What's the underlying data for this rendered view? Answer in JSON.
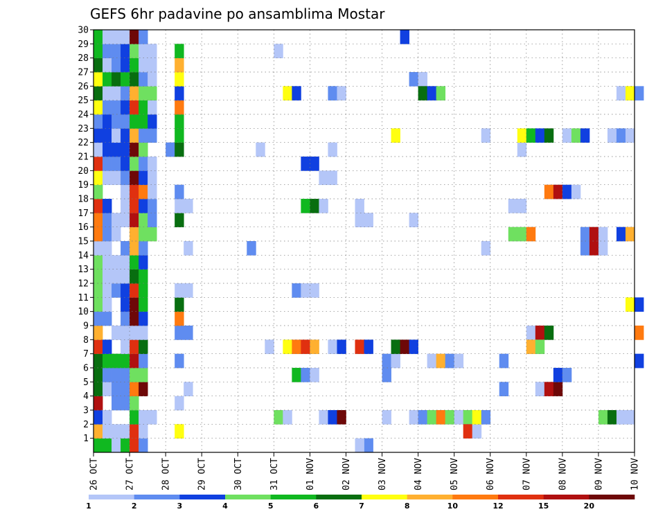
{
  "chart_data": {
    "type": "heatmap",
    "title": "GEFS 6hr padavine po ansamblima Mostar",
    "x_tick_labels": [
      "26 OCT",
      "27 OCT",
      "28 OCT",
      "29 OCT",
      "30 OCT",
      "31 OCT",
      "01 NOV",
      "02 NOV",
      "03 NOV",
      "04 NOV",
      "05 NOV",
      "06 NOV",
      "07 NOV",
      "08 NOV",
      "09 NOV",
      "10 NOV"
    ],
    "y_tick_labels": [
      "1",
      "2",
      "3",
      "4",
      "5",
      "6",
      "7",
      "8",
      "9",
      "10",
      "11",
      "12",
      "13",
      "14",
      "15",
      "16",
      "17",
      "18",
      "19",
      "20",
      "21",
      "22",
      "23",
      "24",
      "25",
      "26",
      "27",
      "28",
      "29",
      "30"
    ],
    "xlim_steps_6h": [
      0,
      60
    ],
    "ylim_members": [
      0,
      30
    ],
    "grid": true,
    "colorbar": {
      "labels": [
        "1",
        "2",
        "3",
        "4",
        "5",
        "6",
        "7",
        "8",
        "10",
        "12",
        "15",
        "20"
      ],
      "colors": [
        "#b4c6f8",
        "#5f8cf0",
        "#1040e0",
        "#6fe060",
        "#10b820",
        "#086e10",
        "#ffff10",
        "#ffb030",
        "#ff7a10",
        "#e03010",
        "#b01010",
        "#6e0808"
      ]
    },
    "cells": [
      [
        0,
        0,
        5
      ],
      [
        1,
        0,
        5
      ],
      [
        0,
        1,
        8
      ],
      [
        0,
        2,
        3
      ],
      [
        0,
        3,
        11
      ],
      [
        0,
        4,
        6
      ],
      [
        0,
        5,
        6
      ],
      [
        0,
        6,
        6
      ],
      [
        0,
        7,
        10
      ],
      [
        0,
        8,
        8
      ],
      [
        0,
        9,
        2
      ],
      [
        0,
        10,
        4
      ],
      [
        0,
        11,
        4
      ],
      [
        0,
        12,
        4
      ],
      [
        0,
        13,
        4
      ],
      [
        0,
        14,
        1
      ],
      [
        0,
        15,
        9
      ],
      [
        0,
        16,
        9
      ],
      [
        0,
        17,
        10
      ],
      [
        0,
        18,
        4
      ],
      [
        0,
        19,
        7
      ],
      [
        0,
        20,
        10
      ],
      [
        0,
        21,
        1
      ],
      [
        0,
        22,
        3
      ],
      [
        0,
        23,
        2
      ],
      [
        0,
        24,
        7
      ],
      [
        0,
        25,
        6
      ],
      [
        0,
        26,
        7
      ],
      [
        0,
        27,
        6
      ],
      [
        0,
        28,
        5
      ],
      [
        0,
        29,
        5
      ],
      [
        1,
        1,
        1
      ],
      [
        1,
        2,
        1
      ],
      [
        1,
        4,
        1
      ],
      [
        1,
        5,
        2
      ],
      [
        1,
        6,
        5
      ],
      [
        1,
        7,
        3
      ],
      [
        1,
        9,
        2
      ],
      [
        1,
        10,
        1
      ],
      [
        1,
        11,
        1
      ],
      [
        1,
        12,
        1
      ],
      [
        1,
        13,
        1
      ],
      [
        1,
        14,
        1
      ],
      [
        1,
        15,
        2
      ],
      [
        1,
        16,
        2
      ],
      [
        1,
        17,
        3
      ],
      [
        1,
        19,
        1
      ],
      [
        1,
        20,
        2
      ],
      [
        1,
        21,
        3
      ],
      [
        1,
        22,
        3
      ],
      [
        1,
        23,
        3
      ],
      [
        1,
        24,
        2
      ],
      [
        1,
        25,
        1
      ],
      [
        1,
        26,
        5
      ],
      [
        1,
        27,
        1
      ],
      [
        1,
        28,
        2
      ],
      [
        1,
        29,
        1
      ],
      [
        2,
        0,
        1
      ],
      [
        2,
        1,
        1
      ],
      [
        2,
        3,
        2
      ],
      [
        2,
        4,
        2
      ],
      [
        2,
        5,
        2
      ],
      [
        2,
        6,
        5
      ],
      [
        2,
        8,
        1
      ],
      [
        2,
        11,
        2
      ],
      [
        2,
        12,
        1
      ],
      [
        2,
        13,
        1
      ],
      [
        2,
        15,
        1
      ],
      [
        2,
        16,
        1
      ],
      [
        2,
        19,
        1
      ],
      [
        2,
        20,
        2
      ],
      [
        2,
        21,
        3
      ],
      [
        2,
        22,
        1
      ],
      [
        2,
        23,
        2
      ],
      [
        2,
        24,
        2
      ],
      [
        2,
        25,
        1
      ],
      [
        2,
        26,
        6
      ],
      [
        2,
        27,
        2
      ],
      [
        2,
        28,
        2
      ],
      [
        2,
        29,
        1
      ],
      [
        3,
        0,
        5
      ],
      [
        3,
        1,
        1
      ],
      [
        3,
        3,
        2
      ],
      [
        3,
        4,
        2
      ],
      [
        3,
        5,
        2
      ],
      [
        3,
        6,
        5
      ],
      [
        3,
        7,
        1
      ],
      [
        3,
        8,
        1
      ],
      [
        3,
        9,
        2
      ],
      [
        3,
        10,
        3
      ],
      [
        3,
        11,
        3
      ],
      [
        3,
        12,
        1
      ],
      [
        3,
        13,
        1
      ],
      [
        3,
        14,
        2
      ],
      [
        3,
        16,
        1
      ],
      [
        3,
        17,
        1
      ],
      [
        3,
        18,
        1
      ],
      [
        3,
        19,
        2
      ],
      [
        3,
        20,
        3
      ],
      [
        3,
        21,
        3
      ],
      [
        3,
        22,
        3
      ],
      [
        3,
        23,
        2
      ],
      [
        3,
        24,
        3
      ],
      [
        3,
        25,
        2
      ],
      [
        3,
        26,
        5
      ],
      [
        3,
        27,
        3
      ],
      [
        3,
        28,
        3
      ],
      [
        3,
        29,
        1
      ],
      [
        4,
        0,
        10
      ],
      [
        4,
        1,
        10
      ],
      [
        4,
        2,
        5
      ],
      [
        4,
        3,
        4
      ],
      [
        4,
        4,
        9
      ],
      [
        4,
        5,
        4
      ],
      [
        4,
        6,
        11
      ],
      [
        4,
        7,
        10
      ],
      [
        4,
        8,
        1
      ],
      [
        4,
        9,
        12
      ],
      [
        4,
        10,
        12
      ],
      [
        4,
        11,
        10
      ],
      [
        4,
        12,
        6
      ],
      [
        4,
        13,
        5
      ],
      [
        4,
        14,
        8
      ],
      [
        4,
        15,
        8
      ],
      [
        4,
        16,
        11
      ],
      [
        4,
        17,
        10
      ],
      [
        4,
        18,
        10
      ],
      [
        4,
        19,
        12
      ],
      [
        4,
        20,
        4
      ],
      [
        4,
        21,
        12
      ],
      [
        4,
        22,
        8
      ],
      [
        4,
        23,
        5
      ],
      [
        4,
        24,
        10
      ],
      [
        4,
        25,
        8
      ],
      [
        4,
        26,
        6
      ],
      [
        4,
        27,
        5
      ],
      [
        4,
        28,
        4
      ],
      [
        4,
        29,
        12
      ],
      [
        5,
        0,
        2
      ],
      [
        5,
        1,
        1
      ],
      [
        5,
        2,
        1
      ],
      [
        5,
        4,
        12
      ],
      [
        5,
        5,
        4
      ],
      [
        5,
        6,
        2
      ],
      [
        5,
        7,
        6
      ],
      [
        5,
        8,
        1
      ],
      [
        5,
        9,
        3
      ],
      [
        5,
        10,
        5
      ],
      [
        5,
        11,
        5
      ],
      [
        5,
        12,
        5
      ],
      [
        5,
        13,
        3
      ],
      [
        5,
        14,
        2
      ],
      [
        5,
        15,
        4
      ],
      [
        5,
        16,
        4
      ],
      [
        5,
        17,
        3
      ],
      [
        5,
        18,
        9
      ],
      [
        5,
        19,
        3
      ],
      [
        5,
        20,
        2
      ],
      [
        5,
        21,
        4
      ],
      [
        5,
        22,
        2
      ],
      [
        5,
        23,
        5
      ],
      [
        5,
        24,
        5
      ],
      [
        5,
        25,
        4
      ],
      [
        5,
        26,
        2
      ],
      [
        5,
        27,
        1
      ],
      [
        5,
        28,
        1
      ],
      [
        5,
        29,
        2
      ],
      [
        6,
        2,
        1
      ],
      [
        6,
        15,
        4
      ],
      [
        6,
        16,
        2
      ],
      [
        6,
        17,
        2
      ],
      [
        6,
        18,
        1
      ],
      [
        6,
        19,
        1
      ],
      [
        6,
        20,
        1
      ],
      [
        6,
        22,
        2
      ],
      [
        6,
        23,
        3
      ],
      [
        6,
        24,
        1
      ],
      [
        6,
        25,
        4
      ],
      [
        6,
        26,
        1
      ],
      [
        6,
        27,
        1
      ],
      [
        6,
        28,
        1
      ],
      [
        8,
        21,
        2
      ],
      [
        9,
        1,
        7
      ],
      [
        9,
        3,
        1
      ],
      [
        9,
        6,
        2
      ],
      [
        9,
        8,
        2
      ],
      [
        9,
        9,
        9
      ],
      [
        9,
        10,
        6
      ],
      [
        9,
        11,
        1
      ],
      [
        9,
        16,
        6
      ],
      [
        9,
        17,
        1
      ],
      [
        9,
        18,
        2
      ],
      [
        9,
        21,
        6
      ],
      [
        9,
        22,
        5
      ],
      [
        9,
        23,
        5
      ],
      [
        9,
        24,
        9
      ],
      [
        9,
        25,
        3
      ],
      [
        9,
        26,
        7
      ],
      [
        9,
        27,
        8
      ],
      [
        9,
        28,
        5
      ],
      [
        10,
        4,
        1
      ],
      [
        10,
        8,
        2
      ],
      [
        10,
        11,
        1
      ],
      [
        10,
        14,
        1
      ],
      [
        10,
        17,
        1
      ],
      [
        17,
        14,
        2
      ],
      [
        18,
        21,
        1
      ],
      [
        19,
        7,
        1
      ],
      [
        20,
        28,
        1
      ],
      [
        21,
        7,
        7
      ],
      [
        22,
        7,
        9
      ],
      [
        23,
        7,
        10
      ],
      [
        24,
        7,
        8
      ],
      [
        21,
        25,
        7
      ],
      [
        22,
        25,
        3
      ],
      [
        20,
        2,
        4
      ],
      [
        21,
        2,
        1
      ],
      [
        22,
        5,
        5
      ],
      [
        23,
        5,
        2
      ],
      [
        24,
        5,
        1
      ],
      [
        22,
        11,
        2
      ],
      [
        23,
        11,
        1
      ],
      [
        24,
        11,
        1
      ],
      [
        23,
        17,
        5
      ],
      [
        24,
        17,
        6
      ],
      [
        25,
        17,
        1
      ],
      [
        23,
        20,
        3
      ],
      [
        24,
        20,
        3
      ],
      [
        25,
        19,
        1
      ],
      [
        26,
        19,
        1
      ],
      [
        25,
        2,
        1
      ],
      [
        26,
        2,
        3
      ],
      [
        27,
        2,
        12
      ],
      [
        26,
        21,
        1
      ],
      [
        26,
        25,
        2
      ],
      [
        27,
        25,
        1
      ],
      [
        26,
        7,
        1
      ],
      [
        27,
        7,
        3
      ],
      [
        29,
        7,
        10
      ],
      [
        30,
        7,
        3
      ],
      [
        29,
        17,
        1
      ],
      [
        29,
        16,
        1
      ],
      [
        30,
        16,
        1
      ],
      [
        30,
        0,
        2
      ],
      [
        29,
        0,
        1
      ],
      [
        32,
        6,
        2
      ],
      [
        32,
        5,
        2
      ],
      [
        32,
        2,
        1
      ],
      [
        33,
        6,
        1
      ],
      [
        33,
        7,
        6
      ],
      [
        34,
        7,
        12
      ],
      [
        35,
        7,
        3
      ],
      [
        33,
        22,
        7
      ],
      [
        34,
        29,
        3
      ],
      [
        35,
        2,
        1
      ],
      [
        35,
        26,
        2
      ],
      [
        36,
        26,
        1
      ],
      [
        35,
        16,
        1
      ],
      [
        36,
        25,
        6
      ],
      [
        37,
        25,
        3
      ],
      [
        38,
        25,
        4
      ],
      [
        36,
        2,
        2
      ],
      [
        37,
        2,
        4
      ],
      [
        37,
        6,
        1
      ],
      [
        38,
        2,
        9
      ],
      [
        38,
        6,
        8
      ],
      [
        39,
        2,
        4
      ],
      [
        39,
        6,
        2
      ],
      [
        40,
        2,
        1
      ],
      [
        40,
        6,
        1
      ],
      [
        41,
        2,
        4
      ],
      [
        41,
        1,
        10
      ],
      [
        42,
        1,
        1
      ],
      [
        42,
        2,
        7
      ],
      [
        43,
        2,
        2
      ],
      [
        43,
        14,
        1
      ],
      [
        43,
        22,
        1
      ],
      [
        45,
        6,
        2
      ],
      [
        45,
        4,
        2
      ],
      [
        46,
        17,
        1
      ],
      [
        47,
        17,
        1
      ],
      [
        47,
        21,
        1
      ],
      [
        46,
        15,
        4
      ],
      [
        47,
        15,
        4
      ],
      [
        48,
        15,
        9
      ],
      [
        47,
        22,
        7
      ],
      [
        48,
        22,
        5
      ],
      [
        49,
        22,
        3
      ],
      [
        50,
        22,
        6
      ],
      [
        48,
        8,
        1
      ],
      [
        49,
        8,
        11
      ],
      [
        50,
        8,
        6
      ],
      [
        49,
        4,
        1
      ],
      [
        50,
        4,
        11
      ],
      [
        51,
        4,
        12
      ],
      [
        48,
        7,
        8
      ],
      [
        49,
        7,
        4
      ],
      [
        50,
        18,
        9
      ],
      [
        51,
        18,
        11
      ],
      [
        52,
        18,
        3
      ],
      [
        53,
        18,
        1
      ],
      [
        51,
        5,
        3
      ],
      [
        52,
        5,
        2
      ],
      [
        52,
        22,
        1
      ],
      [
        53,
        22,
        4
      ],
      [
        54,
        22,
        3
      ],
      [
        54,
        15,
        2
      ],
      [
        54,
        14,
        2
      ],
      [
        55,
        15,
        11
      ],
      [
        55,
        14,
        11
      ],
      [
        56,
        15,
        1
      ],
      [
        56,
        14,
        1
      ],
      [
        57,
        22,
        1
      ],
      [
        58,
        15,
        3
      ],
      [
        59,
        15,
        8
      ],
      [
        56,
        2,
        4
      ],
      [
        57,
        2,
        6
      ],
      [
        58,
        2,
        1
      ],
      [
        59,
        2,
        1
      ],
      [
        58,
        22,
        2
      ],
      [
        59,
        22,
        1
      ],
      [
        58,
        25,
        1
      ],
      [
        59,
        25,
        7
      ],
      [
        60,
        25,
        2
      ],
      [
        59,
        10,
        7
      ],
      [
        60,
        10,
        3
      ],
      [
        60,
        6,
        3
      ],
      [
        60,
        8,
        9
      ]
    ]
  }
}
